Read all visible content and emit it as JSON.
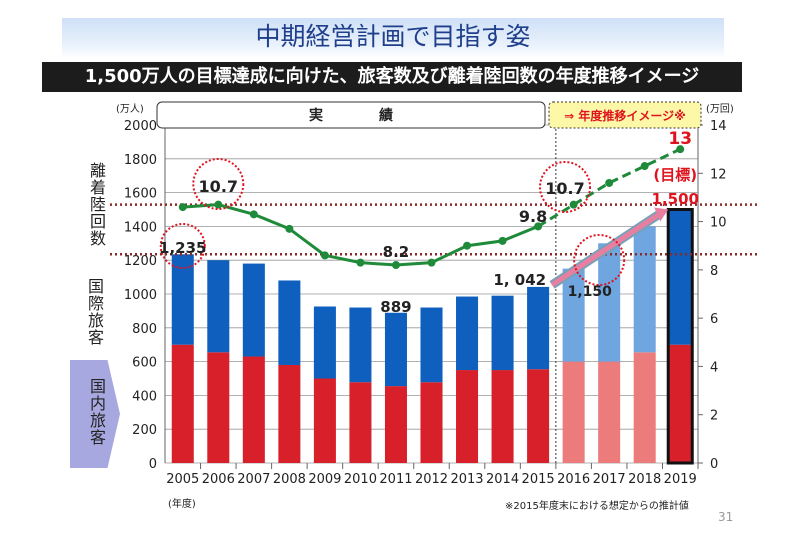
{
  "header": {
    "title": "中期経営計画で目指す姿",
    "subtitle": "1,500万人の目標達成に向けた、旅客数及び離着陸回数の年度推移イメージ"
  },
  "side_labels": {
    "movements": "離着陸回数",
    "international": "国際旅客",
    "domestic": "国内旅客"
  },
  "chart_data": {
    "type": "bar+line",
    "categories": [
      "2005",
      "2006",
      "2007",
      "2008",
      "2009",
      "2010",
      "2011",
      "2012",
      "2013",
      "2014",
      "2015",
      "2016",
      "2017",
      "2018",
      "2019"
    ],
    "series": [
      {
        "name": "国内旅客",
        "type": "stacked-bar",
        "values": [
          700,
          655,
          630,
          580,
          500,
          478,
          455,
          478,
          550,
          550,
          555,
          600,
          600,
          655,
          700
        ],
        "color": "#d8202a",
        "projected_color": "#ec7b7b"
      },
      {
        "name": "国際旅客",
        "type": "stacked-bar",
        "values": [
          535,
          545,
          550,
          500,
          426,
          442,
          434,
          442,
          435,
          440,
          487,
          550,
          700,
          745,
          800
        ],
        "color": "#0f5fbf",
        "projected_color": "#6fa6e0"
      },
      {
        "name": "離着陸回数",
        "type": "line",
        "axis": "right",
        "values": [
          10.6,
          10.7,
          10.3,
          9.7,
          8.6,
          8.3,
          8.2,
          8.3,
          9.0,
          9.2,
          9.8,
          10.7,
          11.6,
          12.3,
          13
        ],
        "color": "#1f8a3a"
      }
    ],
    "projection_start": "2016",
    "left_axis": {
      "unit": "(万人)",
      "ylim": [
        0,
        2000
      ],
      "ticks": [
        0,
        200,
        400,
        600,
        800,
        1000,
        1200,
        1400,
        1600,
        1800,
        2000
      ]
    },
    "right_axis": {
      "unit": "(万回)",
      "ylim": [
        0,
        14
      ],
      "ticks": [
        0,
        2,
        4,
        6,
        8,
        10,
        12,
        14
      ]
    },
    "x_unit": "(年度)",
    "grid": true,
    "reference_lines": [
      {
        "axis": "right",
        "value": 10.7
      },
      {
        "axis": "left",
        "value": 1235
      }
    ],
    "section_labels": {
      "actual": "実　　　　績",
      "projection": "⇒ 年度推移イメージ※"
    },
    "annotations": {
      "total_2005": "1,235",
      "movements_2006": "10.7",
      "movements_2011": "8.2",
      "total_2011": "889",
      "movements_2015": "9.8",
      "total_2015": "1, 042",
      "total_2016": "1,150",
      "movements_2016": "10.7",
      "movements_2019": "13",
      "target_label": "(目標)",
      "target_value": "1,500"
    }
  },
  "footer": {
    "note": "※2015年度末における想定からの推計値",
    "page": "31"
  }
}
